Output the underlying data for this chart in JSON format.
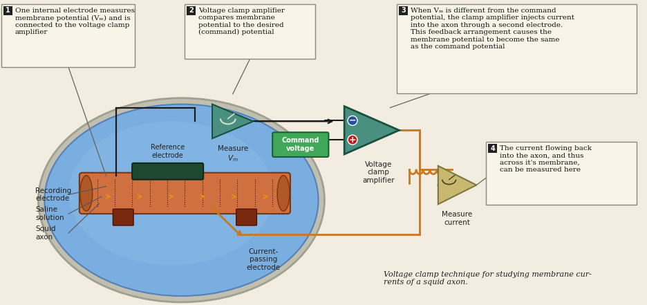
{
  "bg_color": "#f2ede0",
  "caption": "Voltage clamp technique for studying membrane cur-\nrents of a squid axon.",
  "label1_text": "One internal electrode measures\nmembrane potential (Vₘ) and is\nconnected to the voltage clamp\namplifier",
  "label2_text": "Voltage clamp amplifier\ncompares membrane\npotential to the desired\n(command) potential",
  "label3_text": "When Vₘ is different from the command\npotential, the clamp amplifier injects current\ninto the axon through a second electrode.\nThis feedback arrangement causes the\nmembrane potential to become the same\nas the command potential",
  "label4_text": "The current flowing back\ninto the axon, and thus\nacross it's membrane,\ncan be measured here",
  "teal": "#4a9080",
  "orange": "#c87820",
  "blue_saline": "#6a9fd8",
  "axon_col": "#cc7040",
  "wire": "#1a1a1a",
  "label_bg": "#f8f5e8",
  "label_border": "#888880",
  "num_bg": "#222222",
  "green_cmd": "#3a9850",
  "tan_amp": "#c8b878",
  "ref_green": "#1a4030"
}
